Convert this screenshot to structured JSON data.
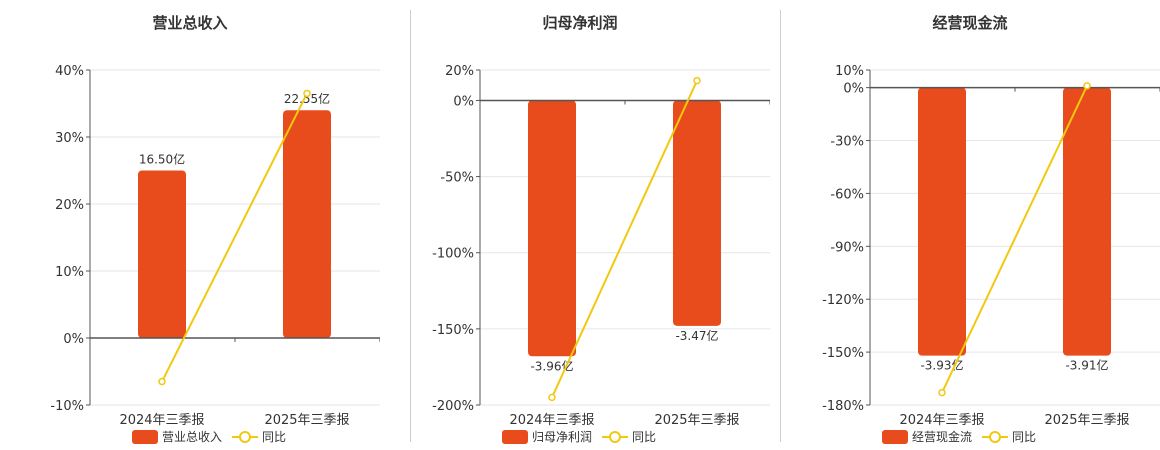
{
  "colors": {
    "bar": "#e84b1c",
    "line": "#f2c811",
    "axis": "#555555",
    "grid": "#e6e6e6",
    "text": "#333333"
  },
  "chart_data": [
    {
      "type": "bar",
      "title": "营业总收入",
      "categories": [
        "2024年三季报",
        "2025年三季报"
      ],
      "ylim": [
        -10,
        40
      ],
      "yticks": [
        40,
        30,
        20,
        10,
        0,
        -10
      ],
      "ytick_labels": [
        "40%",
        "30%",
        "20%",
        "10%",
        "0%",
        "-10%"
      ],
      "bar_values": [
        25,
        34
      ],
      "bar_labels": [
        "16.50亿",
        "22.55亿"
      ],
      "line_values": [
        -6.5,
        36.5
      ],
      "legend": {
        "bar": "营业总收入",
        "line": "同比"
      }
    },
    {
      "type": "bar",
      "title": "归母净利润",
      "categories": [
        "2024年三季报",
        "2025年三季报"
      ],
      "ylim": [
        -200,
        20
      ],
      "yticks": [
        20,
        0,
        -50,
        -100,
        -150,
        -200
      ],
      "ytick_labels": [
        "20%",
        "0%",
        "-50%",
        "-100%",
        "-150%",
        "-200%"
      ],
      "bar_values": [
        -168,
        -148
      ],
      "bar_labels": [
        "-3.96亿",
        "-3.47亿"
      ],
      "line_values": [
        -195,
        13
      ],
      "legend": {
        "bar": "归母净利润",
        "line": "同比"
      }
    },
    {
      "type": "bar",
      "title": "经营现金流",
      "categories": [
        "2024年三季报",
        "2025年三季报"
      ],
      "ylim": [
        -180,
        10
      ],
      "yticks": [
        10,
        0,
        -30,
        -60,
        -90,
        -120,
        -150,
        -180
      ],
      "ytick_labels": [
        "10%",
        "0%",
        "-30%",
        "-60%",
        "-90%",
        "-120%",
        "-150%",
        "-180%"
      ],
      "bar_values": [
        -152,
        -152
      ],
      "bar_labels": [
        "-3.93亿",
        "-3.91亿"
      ],
      "line_values": [
        -173,
        1
      ],
      "legend": {
        "bar": "经营现金流",
        "line": "同比"
      }
    }
  ]
}
